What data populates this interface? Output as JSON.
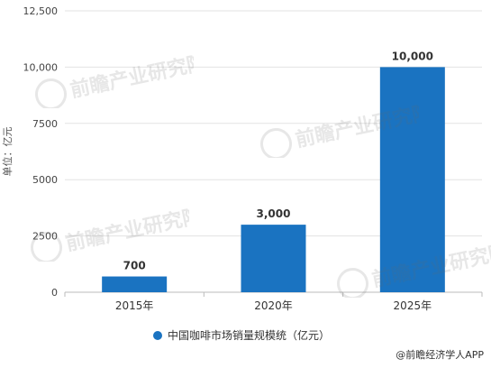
{
  "chart_data": {
    "type": "bar",
    "categories": [
      "2015年",
      "2020年",
      "2025年"
    ],
    "series": [
      {
        "name": "中国咖啡市场销量规模统（亿元）",
        "values": [
          700,
          3000,
          10000
        ],
        "color": "#1a73c1"
      }
    ],
    "data_labels": [
      "700",
      "3,000",
      "10,000"
    ],
    "y_ticks": [
      "0",
      "2500",
      "5000",
      "7500",
      "10,000",
      "12,500"
    ],
    "y_tick_values": [
      0,
      2500,
      5000,
      7500,
      10000,
      12500
    ],
    "ylabel": "单位：亿元",
    "xlabel": "",
    "ylim": [
      0,
      12500
    ],
    "grid": true,
    "legend_position": "bottom"
  },
  "watermark_text": "前瞻产业研究院",
  "source": "@前瞻经济学人APP",
  "colors": {
    "bar": "#1a73c1",
    "grid": "#e3e3e3",
    "axis": "#bbbbbb",
    "text": "#333333"
  }
}
